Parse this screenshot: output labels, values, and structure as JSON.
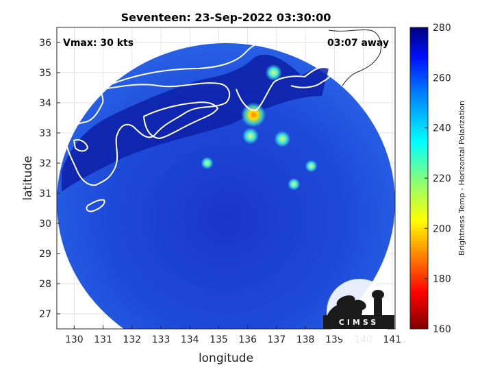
{
  "chart_data": {
    "type": "heatmap",
    "title": "Seventeen: 23-Sep-2022 03:30:00",
    "xlabel": "longitude",
    "ylabel": "latitude",
    "xlim": [
      129.4,
      141.1
    ],
    "ylim": [
      26.5,
      36.5
    ],
    "x_ticks": [
      130,
      131,
      132,
      133,
      134,
      135,
      136,
      137,
      138,
      139,
      140,
      141
    ],
    "y_ticks": [
      27,
      28,
      29,
      30,
      31,
      32,
      33,
      34,
      35,
      36
    ],
    "grid": true,
    "annotations": {
      "vmax": "Vmax: 30 kts",
      "time_away": "03:07 away"
    },
    "colorbar": {
      "label": "Brightness Temp - Horizontal Polarization",
      "range": [
        160,
        280
      ],
      "ticks": [
        160,
        180,
        200,
        220,
        240,
        260,
        280
      ],
      "colormap": "jet"
    },
    "features": {
      "cold_spots": [
        {
          "lon": 136.2,
          "lat": 33.6,
          "value": 205
        },
        {
          "lon": 136.9,
          "lat": 35.0,
          "value": 215
        },
        {
          "lon": 136.1,
          "lat": 32.9,
          "value": 222
        },
        {
          "lon": 137.2,
          "lat": 32.8,
          "value": 220
        },
        {
          "lon": 134.6,
          "lat": 32.0,
          "value": 225
        },
        {
          "lon": 137.6,
          "lat": 31.3,
          "value": 225
        },
        {
          "lon": 138.2,
          "lat": 31.9,
          "value": 235
        }
      ]
    },
    "logo": "CIMSS"
  },
  "colors": {
    "background_tb": "#1c3fd6",
    "land_tb": "#0a1a9a",
    "coast": "#ffffff"
  }
}
